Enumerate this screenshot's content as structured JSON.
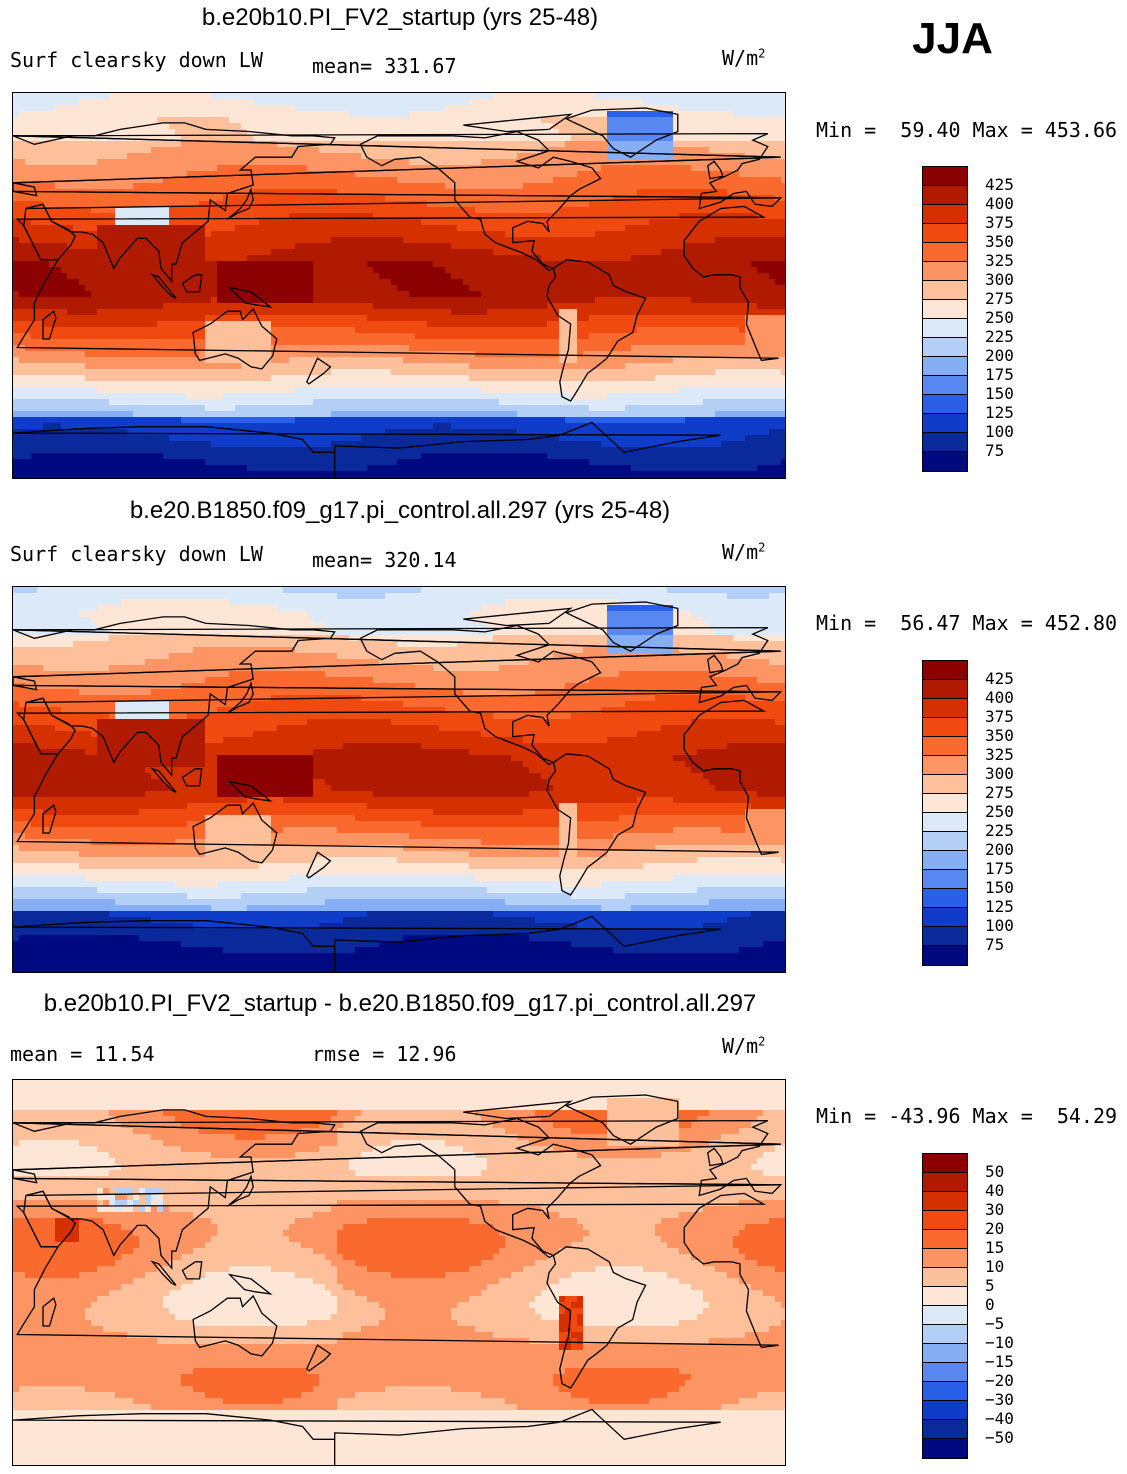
{
  "season": "JJA",
  "panels": [
    {
      "title": "b.e20b10.PI_FV2_startup (yrs 25-48)",
      "variable": "Surf clearsky down LW",
      "stat1": "mean= 331.67",
      "stat2": "",
      "units_base": "W/m",
      "units_exp": "2",
      "minmax": "Min =  59.40 Max = 453.66",
      "colorbar_levels": [
        "425",
        "400",
        "375",
        "350",
        "325",
        "300",
        "275",
        "250",
        "225",
        "200",
        "175",
        "150",
        "125",
        "100",
        "75"
      ],
      "colorbar_colors": [
        "#8b0000",
        "#b01a00",
        "#d43000",
        "#f04a10",
        "#fa6a2e",
        "#fc9464",
        "#fdc09a",
        "#fee6d6",
        "#dbe9f8",
        "#b4cff5",
        "#86aef5",
        "#5887f2",
        "#2a5fe8",
        "#0f3cc8",
        "#0a2a9c",
        "#000a80"
      ],
      "field": "abs"
    },
    {
      "title": "b.e20.B1850.f09_g17.pi_control.all.297 (yrs 25-48)",
      "variable": "Surf clearsky down LW",
      "stat1": "mean= 320.14",
      "stat2": "",
      "units_base": "W/m",
      "units_exp": "2",
      "minmax": "Min =  56.47 Max = 452.80",
      "colorbar_levels": [
        "425",
        "400",
        "375",
        "350",
        "325",
        "300",
        "275",
        "250",
        "225",
        "200",
        "175",
        "150",
        "125",
        "100",
        "75"
      ],
      "colorbar_colors": [
        "#8b0000",
        "#b01a00",
        "#d43000",
        "#f04a10",
        "#fa6a2e",
        "#fc9464",
        "#fdc09a",
        "#fee6d6",
        "#dbe9f8",
        "#b4cff5",
        "#86aef5",
        "#5887f2",
        "#2a5fe8",
        "#0f3cc8",
        "#0a2a9c",
        "#000a80"
      ],
      "field": "abs2"
    },
    {
      "title": "b.e20b10.PI_FV2_startup - b.e20.B1850.f09_g17.pi_control.all.297",
      "variable": "",
      "stat1": "mean =   11.54",
      "stat2": "rmse =   12.96",
      "units_base": "W/m",
      "units_exp": "2",
      "minmax": "Min = -43.96 Max =  54.29",
      "colorbar_levels": [
        "50",
        "40",
        "30",
        "20",
        "15",
        "10",
        "5",
        "0",
        "−5",
        "−10",
        "−15",
        "−20",
        "−30",
        "−40",
        "−50"
      ],
      "colorbar_colors": [
        "#8b0000",
        "#b01a00",
        "#d43000",
        "#f04a10",
        "#fa6a2e",
        "#fc9464",
        "#fdc09a",
        "#fee6d6",
        "#dbe9f8",
        "#b4cff5",
        "#86aef5",
        "#5887f2",
        "#2a5fe8",
        "#0f3cc8",
        "#0a2a9c",
        "#000a80"
      ],
      "field": "diff"
    }
  ]
}
